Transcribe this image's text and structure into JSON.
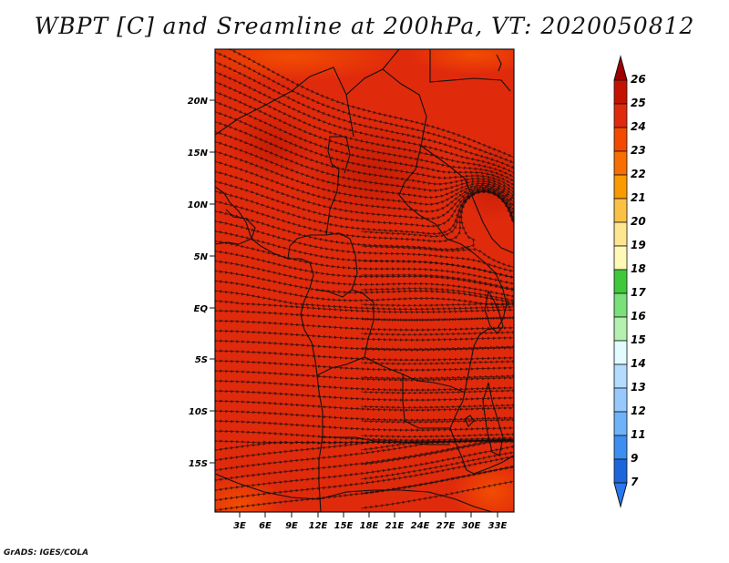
{
  "title": "WBPT [C] and Sreamline at 200hPa, VT: 2020050812",
  "credit": "GrADS: IGES/COLA",
  "map": {
    "lat_labels": [
      "20N",
      "15N",
      "10N",
      "5N",
      "EQ",
      "5S",
      "10S",
      "15S"
    ],
    "lon_labels": [
      "3E",
      "6E",
      "9E",
      "12E",
      "15E",
      "18E",
      "21E",
      "24E",
      "27E",
      "30E",
      "33E"
    ],
    "background_color": "#e02a0c"
  },
  "colorbar": {
    "labels": [
      "26",
      "25",
      "24",
      "23",
      "22",
      "21",
      "20",
      "19",
      "18",
      "17",
      "16",
      "15",
      "14",
      "13",
      "12",
      "11",
      "9",
      "7"
    ],
    "colors": [
      "#a00000",
      "#c41400",
      "#e02a0c",
      "#f24a00",
      "#f86e00",
      "#f99a00",
      "#fbc046",
      "#fee690",
      "#fff9b8",
      "#3fc93a",
      "#79e07a",
      "#b4f0b0",
      "#e2fbff",
      "#b4dcff",
      "#96cafc",
      "#6eb2fa",
      "#3c8ef0",
      "#1c66dc",
      "#2a78ee"
    ]
  }
}
